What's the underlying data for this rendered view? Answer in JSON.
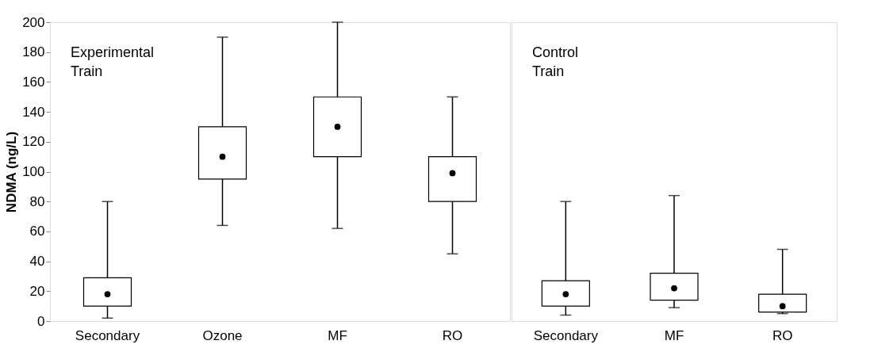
{
  "chart_data": [
    {
      "type": "box",
      "ylabel": "NDMA (ng/L)",
      "categories": [
        "Secondary",
        "Ozone",
        "MF",
        "RO"
      ],
      "ylim": [
        0,
        200
      ],
      "yticks": [
        0,
        20,
        40,
        60,
        80,
        100,
        120,
        140,
        160,
        180,
        200
      ],
      "grid": false,
      "annotations": [
        "Experimental\nTrain"
      ],
      "boxes": [
        {
          "low": 2,
          "q1": 10,
          "median": 18,
          "q3": 29,
          "high": 80
        },
        {
          "low": 64,
          "q1": 95,
          "median": 110,
          "q3": 130,
          "high": 190
        },
        {
          "low": 62,
          "q1": 110,
          "median": 130,
          "q3": 150,
          "high": 200
        },
        {
          "low": 45,
          "q1": 80,
          "median": 99,
          "q3": 110,
          "high": 150
        }
      ]
    },
    {
      "type": "box",
      "categories": [
        "Secondary",
        "MF",
        "RO"
      ],
      "ylim": [
        0,
        200
      ],
      "tick_labels": "x",
      "annotations": [
        "Control\nTrain"
      ],
      "boxes": [
        {
          "low": 4,
          "q1": 10,
          "median": 18,
          "q3": 27,
          "high": 80
        },
        {
          "low": 9,
          "q1": 14,
          "median": 22,
          "q3": 32,
          "high": 84
        },
        {
          "low": 5,
          "q1": 6,
          "median": 10,
          "q3": 18,
          "high": 48
        }
      ]
    }
  ]
}
